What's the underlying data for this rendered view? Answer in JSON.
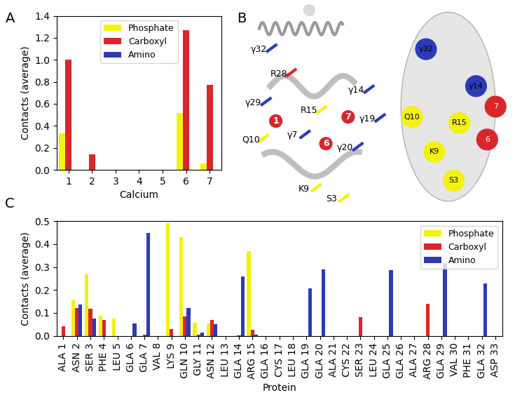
{
  "panel_labels": [
    "A",
    "B",
    "C"
  ],
  "chart_data": [
    {
      "type": "bar",
      "x_label": "Calcium",
      "y_label": "Contacts (average)",
      "categories": [
        "1",
        "2",
        "3",
        "4",
        "5",
        "6",
        "7"
      ],
      "series": [
        {
          "name": "Phosphate",
          "color": "#f2f20d",
          "values": [
            0.33,
            0,
            0,
            0,
            0,
            0.52,
            0.06
          ]
        },
        {
          "name": "Carboxyl",
          "color": "#d9262b",
          "values": [
            1.0,
            0.14,
            0,
            0,
            0,
            1.27,
            0.77
          ]
        },
        {
          "name": "Amino",
          "color": "#2b3bb8",
          "values": [
            0,
            0,
            0,
            0,
            0,
            0,
            0
          ]
        }
      ],
      "ylim": [
        0,
        1.4
      ],
      "yticks": [
        {
          "value": 0,
          "label": "0.0"
        },
        {
          "value": 0.2,
          "label": "0.2"
        },
        {
          "value": 0.4,
          "label": "0.4"
        },
        {
          "value": 0.6,
          "label": "0.6"
        },
        {
          "value": 0.8,
          "label": "0.8"
        },
        {
          "value": 1.0,
          "label": "1.0"
        },
        {
          "value": 1.2,
          "label": "1.2"
        },
        {
          "value": 1.4,
          "label": "1.4"
        }
      ],
      "legend": "upper center"
    },
    {
      "type": "bar",
      "x_label": "Protein",
      "y_label": "Contacts (average)",
      "categories": [
        "ALA 1",
        "ASN 2",
        "SER 3",
        "PHE 4",
        "LEU 5",
        "GLA 6",
        "GLA 7",
        "VAL 8",
        "LYS 9",
        "GLN 10",
        "GLY 11",
        "ASN 12",
        "LEU 13",
        "GLA 14",
        "ARG 15",
        "GLA 16",
        "CYS 17",
        "LEU 18",
        "GLA 19",
        "GLA 20",
        "ALA 21",
        "CYS 22",
        "SER 23",
        "LEU 24",
        "GLA 25",
        "GLA 26",
        "ALA 27",
        "ARG 28",
        "GLA 29",
        "VAL 30",
        "PHE 31",
        "GLA 32",
        "ASP 33"
      ],
      "series": [
        {
          "name": "Phosphate",
          "color": "#f2f20d",
          "values": [
            0,
            0.155,
            0.268,
            0.088,
            0.075,
            0,
            0,
            0,
            0.493,
            0.43,
            0.057,
            0.053,
            0,
            0,
            0.37,
            0,
            0,
            0,
            0,
            0,
            0,
            0,
            0,
            0,
            0,
            0,
            0,
            0,
            0,
            0,
            0,
            0,
            0
          ]
        },
        {
          "name": "Carboxyl",
          "color": "#d9262b",
          "values": [
            0.04,
            0.12,
            0.118,
            0.07,
            0,
            0,
            0.005,
            0,
            0.028,
            0.083,
            0.005,
            0.068,
            0,
            0.003,
            0.025,
            0,
            0,
            0,
            0,
            0,
            0,
            0,
            0.08,
            0,
            0,
            0,
            0,
            0.138,
            0,
            0,
            0,
            0,
            0
          ]
        },
        {
          "name": "Amino",
          "color": "#2b3bb8",
          "values": [
            0,
            0.135,
            0.075,
            0,
            0,
            0.055,
            0.45,
            0,
            0,
            0.12,
            0.013,
            0.05,
            0,
            0.258,
            0.005,
            0,
            0,
            0,
            0.207,
            0.29,
            0,
            0,
            0,
            0,
            0.285,
            0,
            0,
            0,
            0.316,
            0,
            0,
            0.227,
            0
          ]
        }
      ],
      "ylim": [
        0,
        0.5
      ],
      "yticks": [
        {
          "value": 0,
          "label": "0.0"
        },
        {
          "value": 0.1,
          "label": "0.1"
        },
        {
          "value": 0.2,
          "label": "0.2"
        },
        {
          "value": 0.3,
          "label": "0.3"
        },
        {
          "value": 0.4,
          "label": "0.4"
        },
        {
          "value": 0.5,
          "label": "0.5"
        }
      ],
      "legend": "upper right"
    }
  ],
  "diagram": {
    "cartoon_labels": [
      "γ32",
      "R28",
      "γ29",
      "Q10",
      "γ7",
      "K9",
      "S3",
      "R15",
      "γ14",
      "γ19",
      "γ20"
    ],
    "cartoon_calcium": [
      "1",
      "6",
      "7"
    ],
    "surface_labels": [
      "γ32",
      "γ14",
      "7",
      "Q10",
      "R15",
      "6",
      "K9",
      "S3"
    ]
  }
}
